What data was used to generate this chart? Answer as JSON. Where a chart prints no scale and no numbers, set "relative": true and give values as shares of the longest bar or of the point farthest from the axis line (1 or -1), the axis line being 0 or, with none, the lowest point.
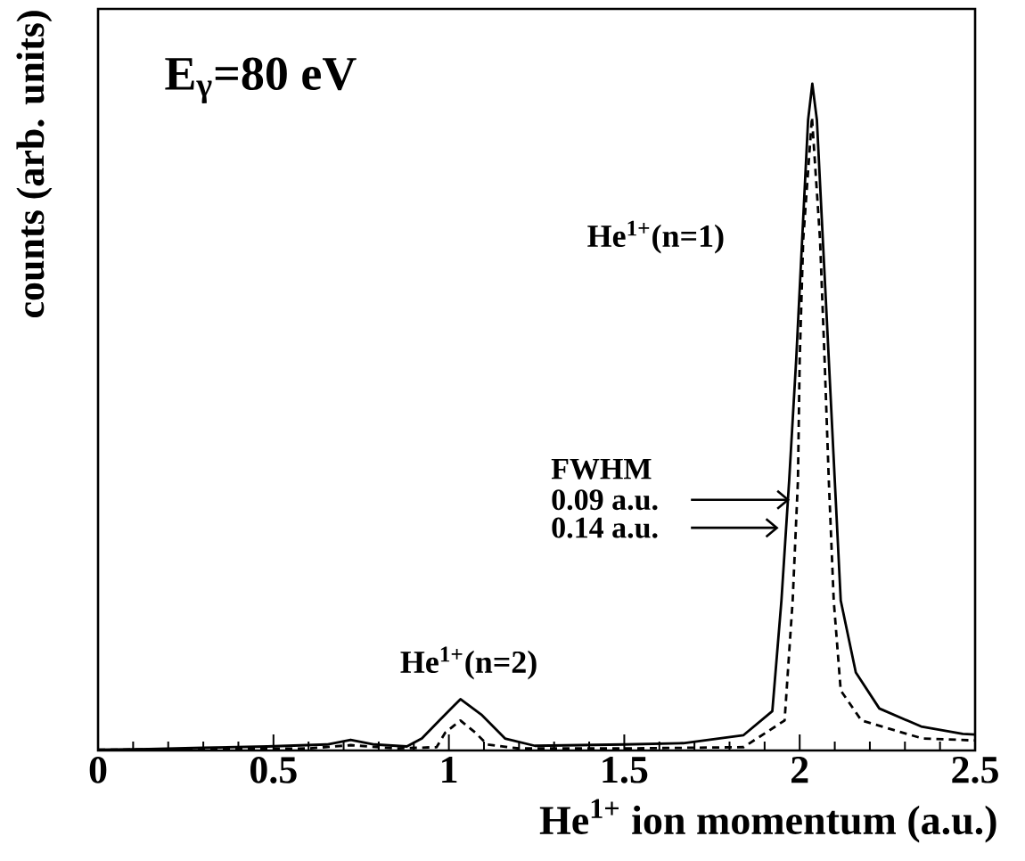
{
  "chart_data": {
    "type": "line",
    "relative": true,
    "xlabel": "He$^{1+}$ ion momentum (a.u.)",
    "ylabel": "counts (arb. units)",
    "xlim": [
      0,
      2.5
    ],
    "xticks": [
      0,
      0.5,
      1,
      1.5,
      2,
      2.5
    ],
    "grid": false,
    "annotations": [
      "E$_{γ}$=80 eV",
      "He$^{1+}$(n=1)",
      "He$^{1+}$(n=2)",
      "FWHM",
      "0.09 a.u.",
      "0.14 a.u."
    ],
    "series": [
      {
        "color": "#000000",
        "line_style": "solid",
        "x": [
          0,
          0.144,
          0.3,
          0.483,
          0.652,
          0.72,
          0.788,
          0.88,
          0.923,
          0.973,
          1.033,
          1.092,
          1.16,
          1.245,
          1.5,
          1.668,
          1.84,
          1.922,
          1.948,
          1.97,
          1.99,
          2.007,
          2.024,
          2.036,
          2.049,
          2.066,
          2.083,
          2.1,
          2.117,
          2.16,
          2.227,
          2.346,
          2.465,
          2.5
        ],
        "values": [
          0.001,
          0.002,
          0.004,
          0.006,
          0.009,
          0.016,
          0.009,
          0.006,
          0.018,
          0.045,
          0.077,
          0.054,
          0.018,
          0.007,
          0.009,
          0.011,
          0.023,
          0.059,
          0.225,
          0.405,
          0.586,
          0.766,
          0.946,
          1.0,
          0.946,
          0.766,
          0.586,
          0.405,
          0.225,
          0.117,
          0.063,
          0.036,
          0.025,
          0.024
        ]
      },
      {
        "color": "#000000",
        "line_style": "dashed",
        "x": [
          0,
          0.3,
          0.6,
          0.72,
          0.85,
          0.965,
          0.99,
          1.033,
          1.075,
          1.109,
          1.2,
          1.5,
          1.84,
          1.957,
          1.98,
          1.995,
          2.0,
          2.01,
          2.035,
          2.058,
          2.071,
          2.083,
          2.097,
          2.117,
          2.176,
          2.35,
          2.5
        ],
        "values": [
          0.001,
          0.002,
          0.003,
          0.008,
          0.003,
          0.005,
          0.027,
          0.045,
          0.027,
          0.009,
          0.003,
          0.003,
          0.005,
          0.045,
          0.225,
          0.405,
          0.586,
          0.766,
          0.95,
          0.766,
          0.586,
          0.405,
          0.225,
          0.09,
          0.045,
          0.018,
          0.015
        ]
      }
    ]
  }
}
